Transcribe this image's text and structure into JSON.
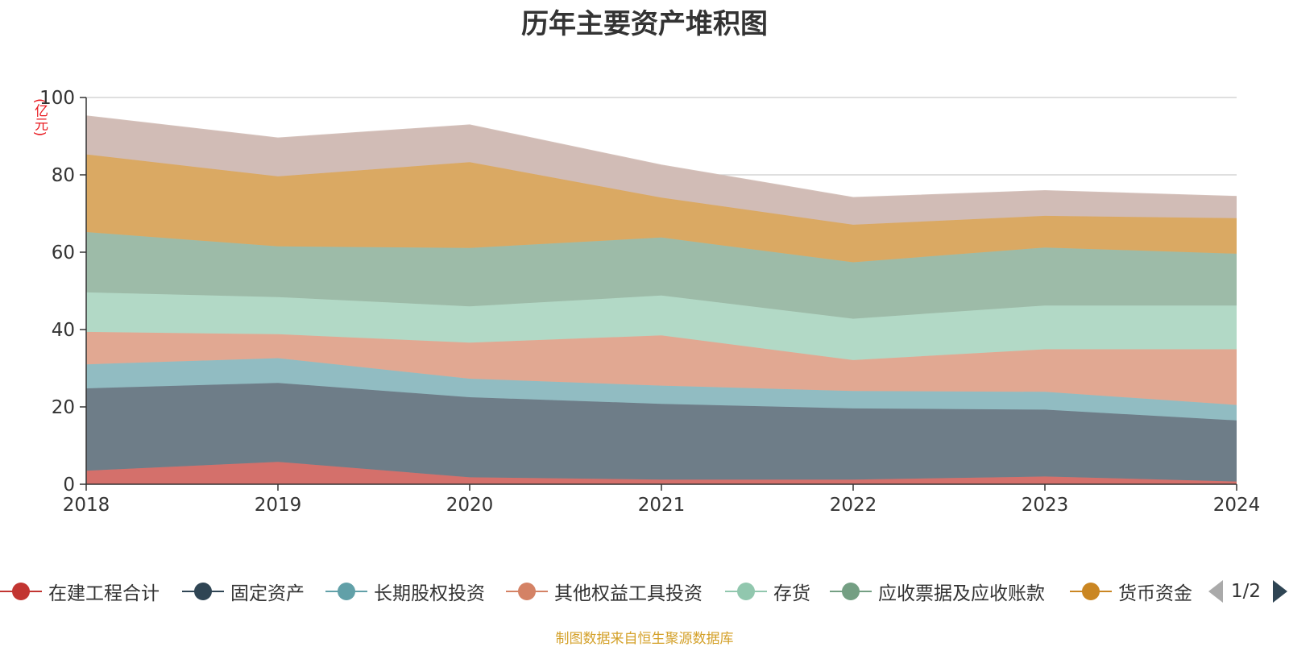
{
  "title": "历年主要资产堆积图",
  "unit": "(亿元)",
  "source": "制图数据来自恒生聚源数据库",
  "pager": {
    "text": "1/2"
  },
  "chart_data": {
    "type": "area",
    "stacked": true,
    "title": "历年主要资产堆积图",
    "ylabel": "(亿元)",
    "x": [
      "2018",
      "2019",
      "2020",
      "2021",
      "2022",
      "2023",
      "2024"
    ],
    "ylim": [
      0,
      100
    ],
    "yticks": [
      0,
      20,
      40,
      60,
      80,
      100
    ],
    "grid": true,
    "legend_position": "bottom",
    "series": [
      {
        "name": "在建工程合计",
        "color": "#c23531",
        "fill": "#d4706b",
        "values": [
          3.5,
          5.8,
          1.8,
          1.2,
          1.2,
          2.0,
          0.7
        ]
      },
      {
        "name": "固定资产",
        "color": "#2f4554",
        "fill": "#6e7d88",
        "values": [
          21.3,
          20.4,
          20.7,
          19.6,
          18.4,
          17.3,
          15.8
        ]
      },
      {
        "name": "长期股权投资",
        "color": "#61a0a8",
        "fill": "#91bcc2",
        "values": [
          6.2,
          6.4,
          4.8,
          4.7,
          4.5,
          4.6,
          4.0
        ]
      },
      {
        "name": "其他权益工具投资",
        "color": "#d48265",
        "fill": "#e1a892",
        "values": [
          8.4,
          6.2,
          9.3,
          13.0,
          8.0,
          11.0,
          14.4
        ]
      },
      {
        "name": "存货",
        "color": "#91c7ae",
        "fill": "#b2d9c6",
        "values": [
          10.2,
          9.6,
          9.4,
          10.3,
          10.7,
          11.3,
          11.3
        ]
      },
      {
        "name": "应收票据及应收账款",
        "color": "#749f83",
        "fill": "#9dbba8",
        "values": [
          15.6,
          13.1,
          15.1,
          15.0,
          14.6,
          15.0,
          13.4
        ]
      },
      {
        "name": "货币资金",
        "color": "#ca8622",
        "fill": "#daa963",
        "values": [
          20.1,
          18.1,
          22.2,
          10.3,
          9.7,
          8.2,
          9.2
        ]
      },
      {
        "name": "",
        "color": "#bda29a",
        "fill": "#d1bcb6",
        "values": [
          9.9,
          9.9,
          9.6,
          8.4,
          7.0,
          6.5,
          5.6
        ]
      }
    ]
  }
}
